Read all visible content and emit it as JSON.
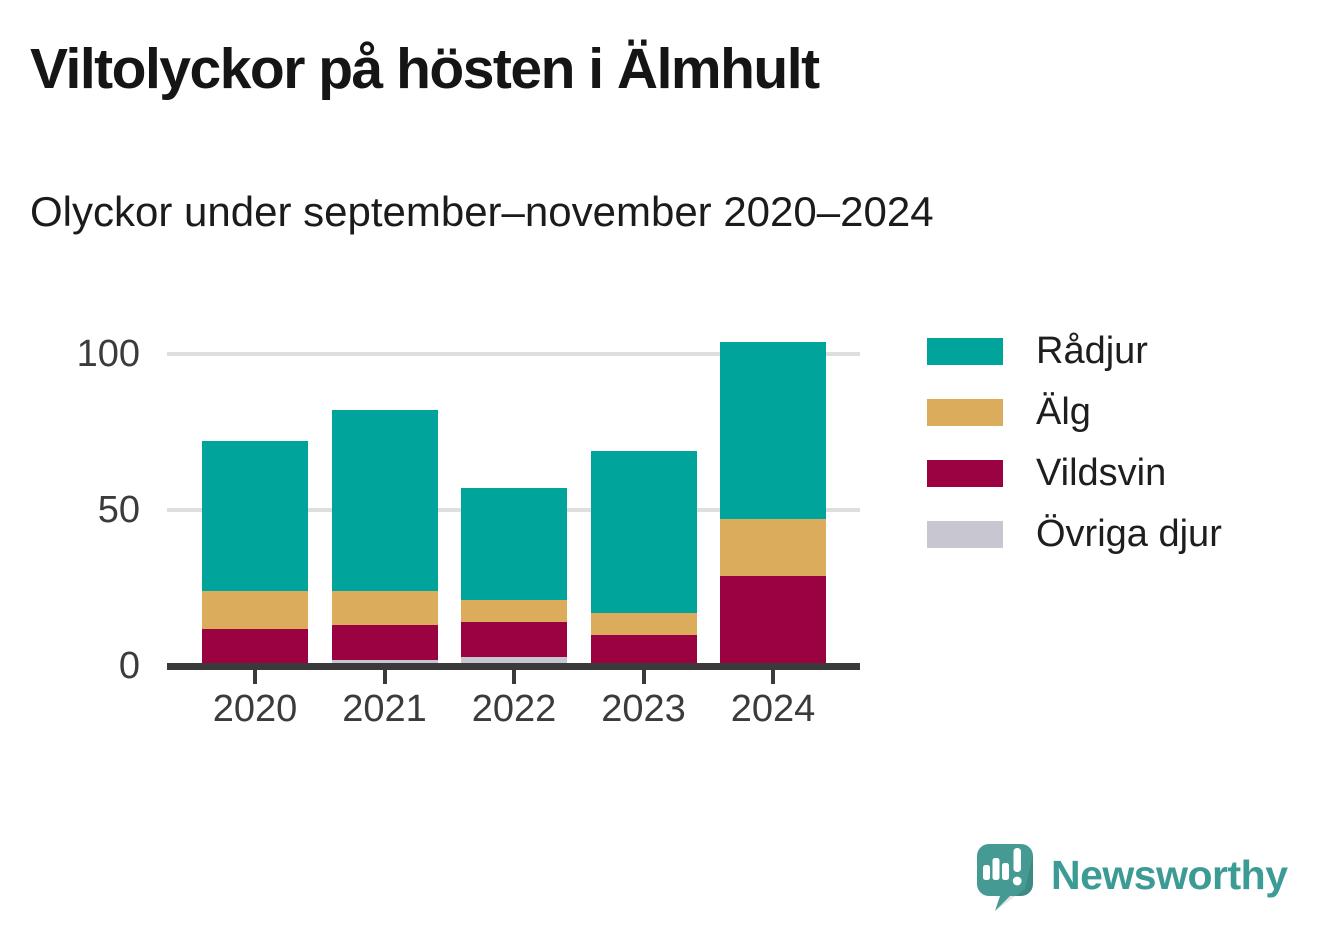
{
  "title": "Viltolyckor på hösten i Älmhult",
  "subtitle": "Olyckor under september–november 2020–2024",
  "branding": {
    "name": "Newsworthy",
    "logo_icon": "newsworthy-speech-bubble-bar-chart-icon",
    "color": "#3d9b95"
  },
  "colors": {
    "background": "#ffffff",
    "title_text": "#151515",
    "axis_text": "#3b3b3b",
    "axis_line": "#3a3a3a",
    "gridline": "#dedede",
    "radjur_teal": "#00a49b",
    "alg_gold": "#daac5c",
    "vildsvin_maroon": "#9a0242",
    "ovriga_gray": "#c7c6d1"
  },
  "chart_data": {
    "type": "bar",
    "stacked": true,
    "orientation": "vertical",
    "categories": [
      "2020",
      "2021",
      "2022",
      "2023",
      "2024"
    ],
    "series": [
      {
        "name": "Rådjur",
        "color": "#00a49b",
        "values": [
          48,
          58,
          36,
          52,
          57
        ]
      },
      {
        "name": "Älg",
        "color": "#daac5c",
        "values": [
          12,
          11,
          7,
          7,
          18
        ]
      },
      {
        "name": "Vildsvin",
        "color": "#9a0242",
        "values": [
          12,
          11,
          11,
          10,
          29
        ]
      },
      {
        "name": "Övriga djur",
        "color": "#c7c6d1",
        "values": [
          0,
          2,
          3,
          0,
          0
        ]
      }
    ],
    "stack_order_bottom_to_top": [
      "Övriga djur",
      "Vildsvin",
      "Älg",
      "Rådjur"
    ],
    "totals": [
      72,
      82,
      57,
      69,
      104
    ],
    "yticks": [
      0,
      50,
      100
    ],
    "ylim": [
      0,
      104
    ],
    "grid": "horizontal",
    "legend_position": "right",
    "xlabel": "",
    "ylabel": ""
  }
}
